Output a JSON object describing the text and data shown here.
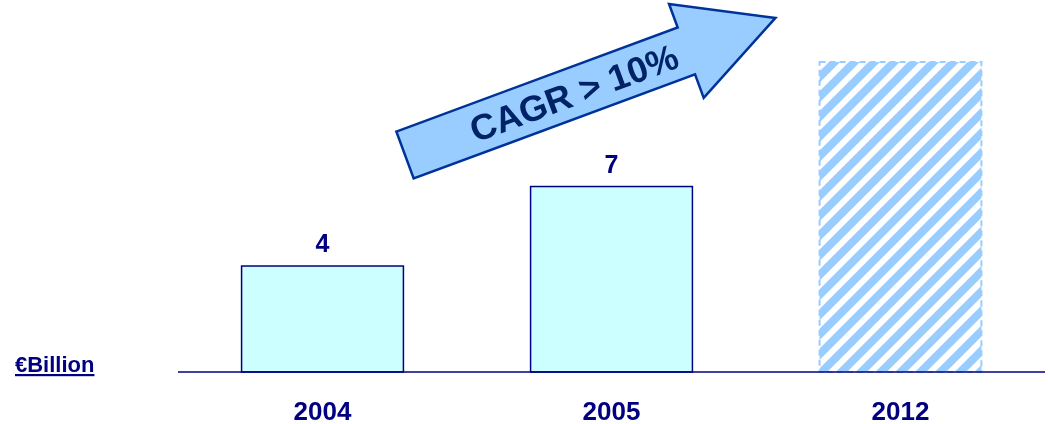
{
  "chart_data": {
    "type": "bar",
    "ylabel": "€Billion",
    "categories": [
      "2004",
      "2005",
      "2012"
    ],
    "values": [
      4,
      7,
      11.7
    ],
    "value_labels": [
      "4",
      "7",
      null
    ],
    "colors": [
      "#ccffff",
      "#ccffff",
      "#99ccff"
    ],
    "annotations": [
      "CAGR > 10%"
    ]
  }
}
